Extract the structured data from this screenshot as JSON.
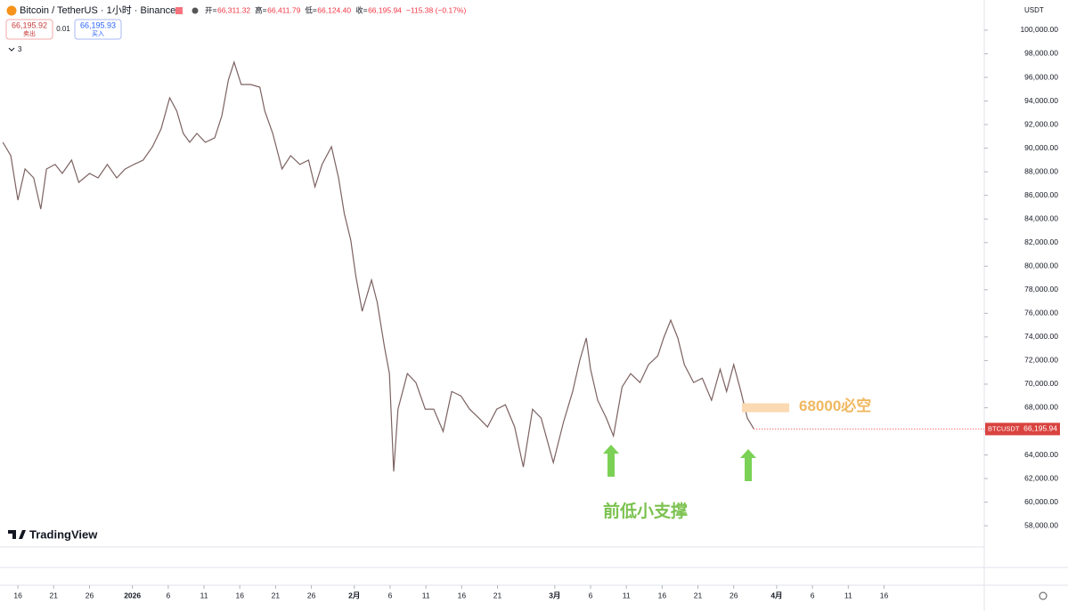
{
  "header": {
    "symbol": "Bitcoin / TetherUS · 1小时 · Binance",
    "ohlc": [
      {
        "label": "开=",
        "value": "66,311.32"
      },
      {
        "label": "高=",
        "value": "66,411.79"
      },
      {
        "label": "低=",
        "value": "66,124.40"
      },
      {
        "label": "收=",
        "value": "66,195.94"
      }
    ],
    "change": "−115.38 (−0.17%)",
    "sell_price": "66,195.92",
    "sell_label": "卖出",
    "spread": "0.01",
    "buy_price": "66,195.93",
    "buy_label": "买入",
    "indicators_count": "3",
    "currency": "USDT",
    "brand": "TradingView"
  },
  "chart_data": {
    "type": "line",
    "color": "#7d6262",
    "x": [
      -2.1,
      -1,
      0,
      1,
      2.2,
      3.2,
      4,
      5.2,
      6.2,
      7.5,
      8.5,
      10,
      11.2,
      12.5,
      13.8,
      15,
      16.2,
      17.5,
      18.8,
      20,
      21.2,
      22.2,
      23.1,
      24,
      25,
      26.2,
      27.5,
      28.5,
      29.4,
      30.2,
      31.2,
      32.5,
      33.8,
      34.5,
      35.6,
      36.9,
      38.1,
      39.4,
      40.6,
      41.5,
      42.5,
      43.8,
      44.8,
      45.6,
      46.5,
      47.2,
      48.1,
      49.4,
      50.2,
      51.2,
      51.9,
      52.5,
      53.1,
      54.4,
      55.6,
      56.9,
      58.1,
      59.4,
      60.6,
      61.9,
      63.1,
      64.4,
      65.6,
      66.9,
      68.1,
      69.4,
      70.6,
      71.9,
      73.1,
      74.8,
      76.2,
      77.5,
      78.5,
      79.4,
      80,
      81,
      82.2,
      83.2,
      84.4,
      85.6,
      86.9,
      88.1,
      89.4,
      90.2,
      91.2,
      92.2,
      93.1,
      94.4,
      95.6,
      96.9,
      98.1,
      99,
      100,
      101,
      101.9,
      102.8
    ],
    "values": [
      90500,
      89370,
      85600,
      88240,
      87480,
      84840,
      88240,
      88620,
      87860,
      88990,
      87100,
      87860,
      87480,
      88620,
      87480,
      88240,
      88620,
      88990,
      90120,
      91630,
      94270,
      93140,
      91250,
      90500,
      91250,
      90500,
      90880,
      92760,
      95780,
      97290,
      95400,
      95400,
      95170,
      93140,
      91250,
      88240,
      89370,
      88620,
      88990,
      86730,
      88620,
      90120,
      87480,
      84470,
      82210,
      79190,
      76180,
      78820,
      76930,
      73160,
      70890,
      62600,
      67880,
      70890,
      70140,
      67880,
      67880,
      65990,
      69380,
      69000,
      67880,
      67120,
      66370,
      67880,
      68250,
      66370,
      62980,
      67880,
      67120,
      63350,
      66750,
      69380,
      72020,
      73910,
      71270,
      68630,
      67120,
      65610,
      69760,
      70890,
      70140,
      71650,
      72400,
      73910,
      75420,
      73910,
      71650,
      70140,
      70510,
      68630,
      71270,
      69380,
      71650,
      69380,
      67120,
      66220
    ],
    "xlim": [
      -2.5,
      135
    ],
    "ylim": [
      56200,
      102560
    ],
    "xticks": [
      {
        "value": 0,
        "label": "16"
      },
      {
        "value": 5,
        "label": "21"
      },
      {
        "value": 10,
        "label": "26"
      },
      {
        "value": 16,
        "label": "2026"
      },
      {
        "value": 21,
        "label": "6"
      },
      {
        "value": 26,
        "label": "11"
      },
      {
        "value": 31,
        "label": "16"
      },
      {
        "value": 36,
        "label": "21"
      },
      {
        "value": 41,
        "label": "26"
      },
      {
        "value": 47,
        "label": "2月"
      },
      {
        "value": 52,
        "label": "6"
      },
      {
        "value": 57,
        "label": "11"
      },
      {
        "value": 62,
        "label": "16"
      },
      {
        "value": 67,
        "label": "21"
      },
      {
        "value": 75,
        "label": "3月"
      },
      {
        "value": 80,
        "label": "6"
      },
      {
        "value": 85,
        "label": "11"
      },
      {
        "value": 90,
        "label": "16"
      },
      {
        "value": 95,
        "label": "21"
      },
      {
        "value": 100,
        "label": "26"
      },
      {
        "value": 106,
        "label": "4月"
      },
      {
        "value": 111,
        "label": "6"
      },
      {
        "value": 116,
        "label": "11"
      },
      {
        "value": 121,
        "label": "16"
      }
    ],
    "yticks": [
      {
        "value": 58000,
        "label": "58,000.00"
      },
      {
        "value": 60000,
        "label": "60,000.00"
      },
      {
        "value": 62000,
        "label": "62,000.00"
      },
      {
        "value": 64000,
        "label": "64,000.00"
      },
      {
        "value": 66000,
        "label": "66,000.00"
      },
      {
        "value": 68000,
        "label": "68,000.00"
      },
      {
        "value": 70000,
        "label": "70,000.00"
      },
      {
        "value": 72000,
        "label": "72,000.00"
      },
      {
        "value": 74000,
        "label": "74,000.00"
      },
      {
        "value": 76000,
        "label": "76,000.00"
      },
      {
        "value": 78000,
        "label": "78,000.00"
      },
      {
        "value": 80000,
        "label": "80,000.00"
      },
      {
        "value": 82000,
        "label": "82,000.00"
      },
      {
        "value": 84000,
        "label": "84,000.00"
      },
      {
        "value": 86000,
        "label": "86,000.00"
      },
      {
        "value": 88000,
        "label": "88,000.00"
      },
      {
        "value": 90000,
        "label": "90,000.00"
      },
      {
        "value": 92000,
        "label": "92,000.00"
      },
      {
        "value": 94000,
        "label": "94,000.00"
      },
      {
        "value": 96000,
        "label": "96,000.00"
      },
      {
        "value": 98000,
        "label": "98,000.00"
      },
      {
        "value": 100000,
        "label": "100,000.00"
      }
    ],
    "last_price": {
      "value": 66195.94,
      "label": "66,195.94",
      "symbol": "BTCUSDT"
    },
    "annotations": [
      {
        "text": "68000必空",
        "value": 68000
      },
      {
        "text": "前低小支撑"
      }
    ]
  }
}
